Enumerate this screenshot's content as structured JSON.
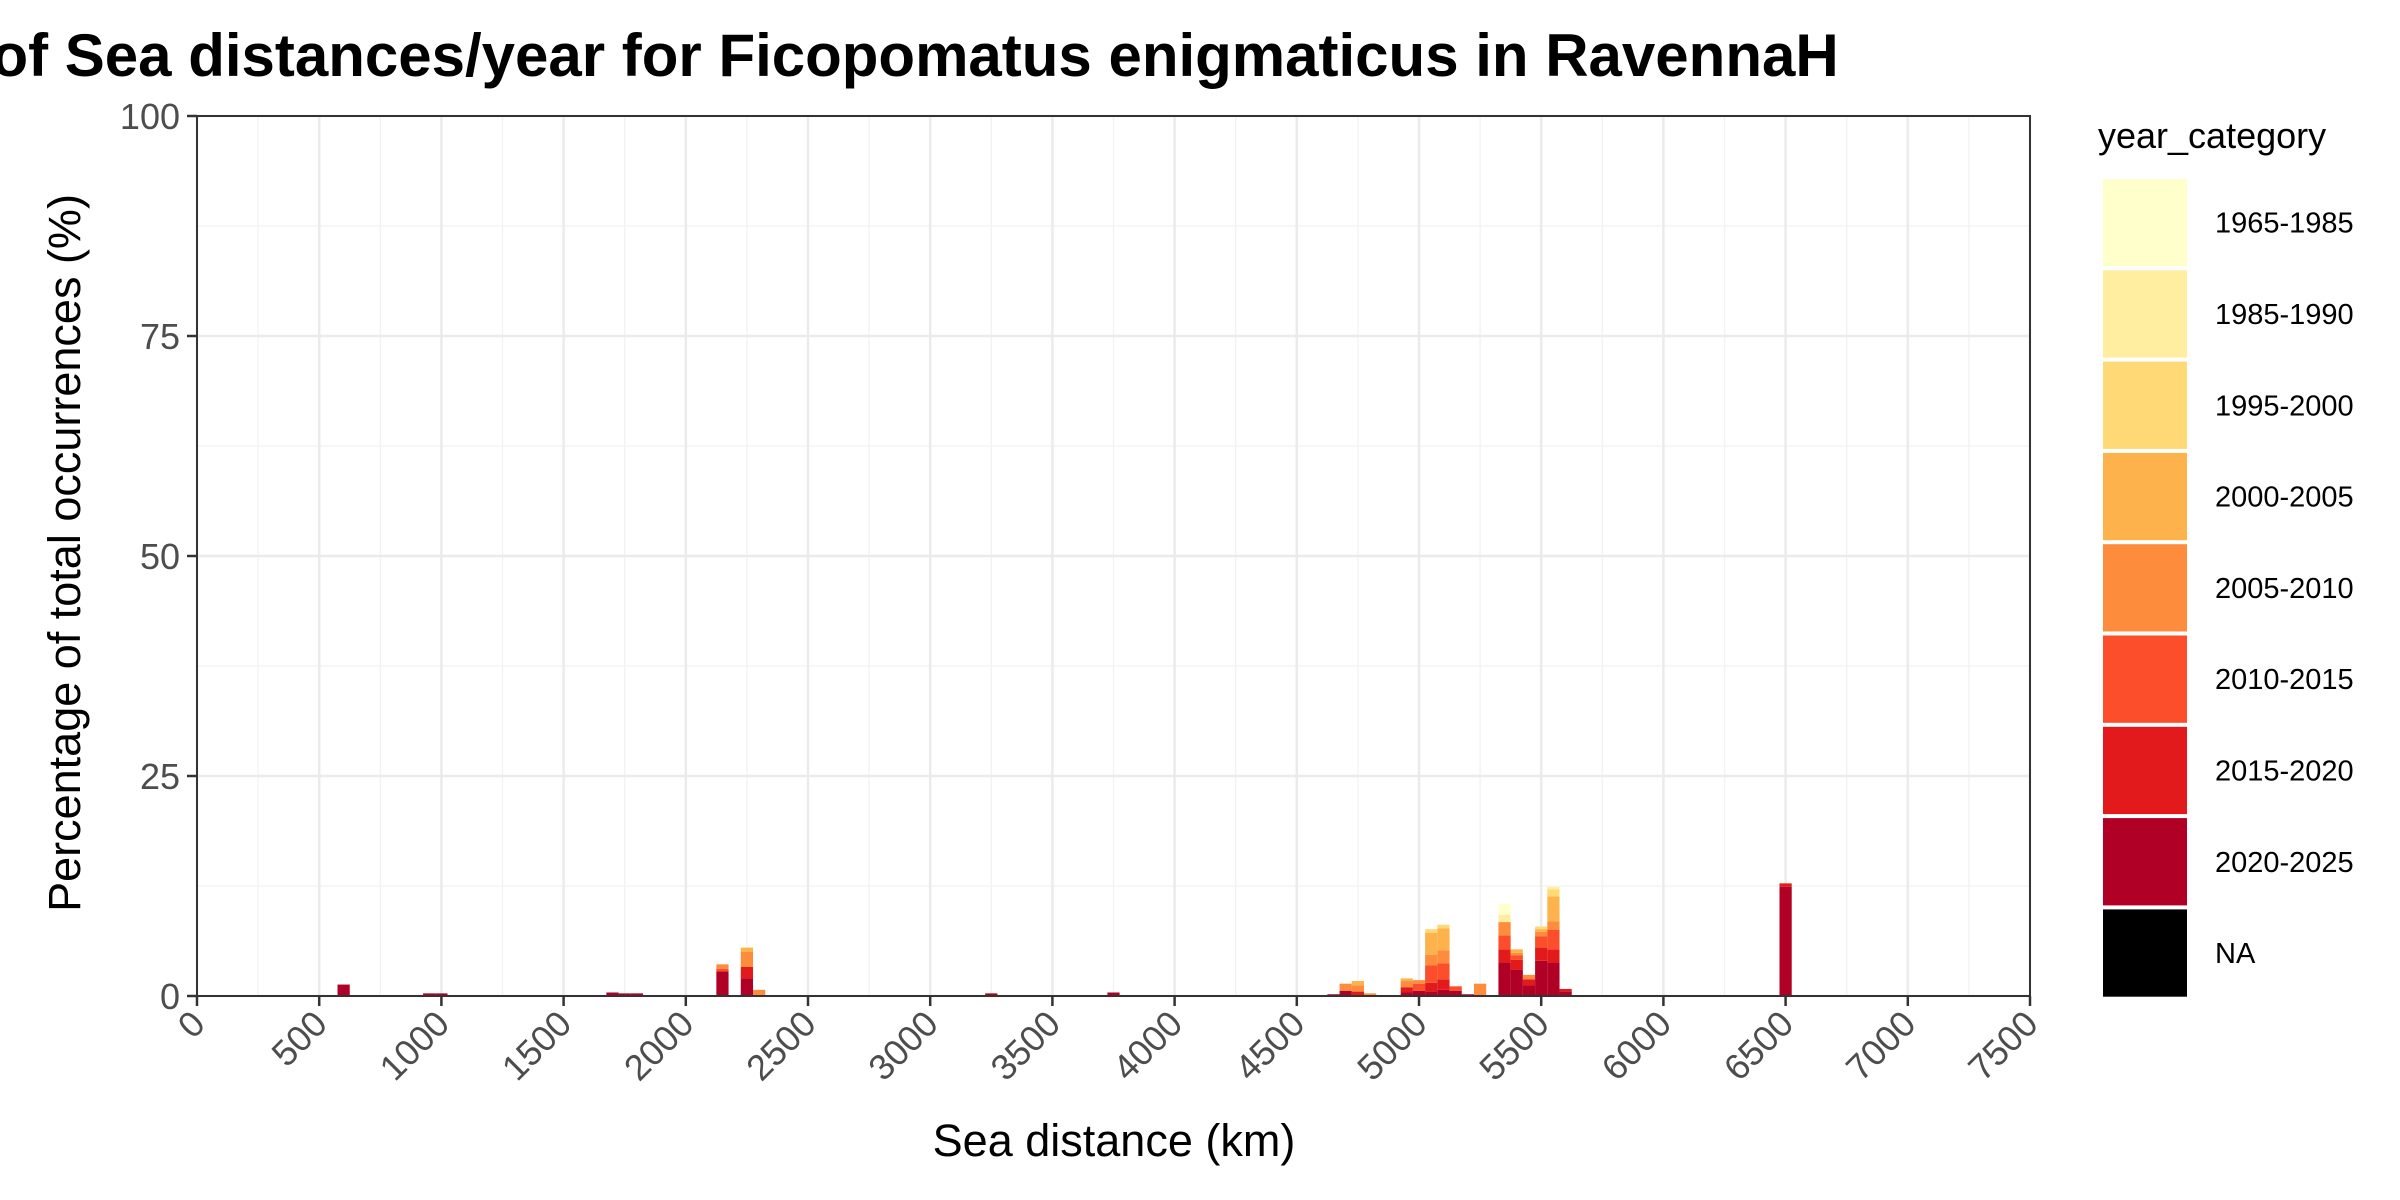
{
  "chart_data": {
    "type": "bar",
    "stacked": true,
    "title": "Frequencies of Sea distances/year for Ficopomatus enigmaticus in RavennaH",
    "xlabel": "Sea distance (km)",
    "ylabel": "Percentage of total occurrences (%)",
    "xlim": [
      0,
      7500
    ],
    "ylim": [
      0,
      100
    ],
    "x_ticks": [
      0,
      500,
      1000,
      1500,
      2000,
      2500,
      3000,
      3500,
      4000,
      4500,
      5000,
      5500,
      6000,
      6500,
      7000,
      7500
    ],
    "y_ticks": [
      0,
      25,
      50,
      75,
      100
    ],
    "bin_width": 50,
    "grid": true,
    "legend": {
      "title": "year_category",
      "position": "right",
      "entries": [
        {
          "label": "1965-1985",
          "color": "#FFFFCC"
        },
        {
          "label": "1985-1990",
          "color": "#FFEDA0"
        },
        {
          "label": "1995-2000",
          "color": "#FED976"
        },
        {
          "label": "2000-2005",
          "color": "#FEB24C"
        },
        {
          "label": "2005-2010",
          "color": "#FD8D3C"
        },
        {
          "label": "2010-2015",
          "color": "#FC4E2A"
        },
        {
          "label": "2015-2020",
          "color": "#E31A1C"
        },
        {
          "label": "2020-2025",
          "color": "#B10026"
        },
        {
          "label": "NA",
          "color": "#000000"
        }
      ]
    },
    "bins": [
      {
        "x": 600,
        "segments": {
          "2020-2025": 1.3
        }
      },
      {
        "x": 950,
        "segments": {
          "2020-2025": 0.3
        }
      },
      {
        "x": 1000,
        "segments": {
          "2020-2025": 0.3
        }
      },
      {
        "x": 1700,
        "segments": {
          "2020-2025": 0.4
        }
      },
      {
        "x": 1750,
        "segments": {
          "2020-2025": 0.3
        }
      },
      {
        "x": 1800,
        "segments": {
          "2020-2025": 0.3
        }
      },
      {
        "x": 2150,
        "segments": {
          "2020-2025": 2.8,
          "2010-2015": 0.3,
          "2005-2010": 0.5
        }
      },
      {
        "x": 2250,
        "segments": {
          "2020-2025": 2.0,
          "2015-2020": 1.3,
          "2005-2010": 1.7,
          "2000-2005": 0.5
        }
      },
      {
        "x": 2300,
        "segments": {
          "2005-2010": 0.7
        }
      },
      {
        "x": 3250,
        "segments": {
          "2020-2025": 0.3
        }
      },
      {
        "x": 3750,
        "segments": {
          "2020-2025": 0.4
        }
      },
      {
        "x": 4650,
        "segments": {
          "2020-2025": 0.2
        }
      },
      {
        "x": 4700,
        "segments": {
          "2020-2025": 0.6,
          "2005-2010": 0.8
        }
      },
      {
        "x": 4750,
        "segments": {
          "2015-2020": 0.5,
          "2005-2010": 0.7,
          "2000-2005": 0.5
        }
      },
      {
        "x": 4800,
        "segments": {
          "2005-2010": 0.3
        }
      },
      {
        "x": 4950,
        "segments": {
          "2020-2025": 0.4,
          "2015-2020": 0.6,
          "2005-2010": 0.7,
          "2000-2005": 0.3
        }
      },
      {
        "x": 5000,
        "segments": {
          "2020-2025": 0.6,
          "2010-2015": 0.8,
          "2005-2010": 0.4
        }
      },
      {
        "x": 5050,
        "segments": {
          "2020-2025": 0.5,
          "2015-2020": 1.0,
          "2010-2015": 2.0,
          "2005-2010": 1.2,
          "2000-2005": 2.5,
          "1995-2000": 0.4
        }
      },
      {
        "x": 5100,
        "segments": {
          "2020-2025": 0.7,
          "2015-2020": 1.2,
          "2010-2015": 1.8,
          "2005-2010": 1.5,
          "2000-2005": 2.5,
          "1995-2000": 0.4
        }
      },
      {
        "x": 5150,
        "segments": {
          "2020-2025": 0.6,
          "2010-2015": 0.5
        }
      },
      {
        "x": 5200,
        "segments": {
          "2020-2025": 0.2
        }
      },
      {
        "x": 5250,
        "segments": {
          "2005-2010": 1.4
        }
      },
      {
        "x": 5350,
        "segments": {
          "2020-2025": 3.8,
          "2015-2020": 1.5,
          "2010-2015": 1.6,
          "2005-2010": 1.5,
          "1985-1990": 0.8,
          "1965-1985": 1.3
        }
      },
      {
        "x": 5400,
        "segments": {
          "2020-2025": 3.0,
          "2015-2020": 1.1,
          "2010-2015": 0.5,
          "2005-2010": 0.3,
          "2000-2005": 0.4
        }
      },
      {
        "x": 5450,
        "segments": {
          "2020-2025": 1.2,
          "2015-2020": 0.7,
          "2005-2010": 0.5
        }
      },
      {
        "x": 5500,
        "segments": {
          "2020-2025": 4.0,
          "2015-2020": 1.5,
          "2010-2015": 1.3,
          "2005-2010": 0.5,
          "2000-2005": 0.3,
          "1995-2000": 0.3
        }
      },
      {
        "x": 5550,
        "segments": {
          "2020-2025": 3.8,
          "2015-2020": 1.5,
          "2010-2015": 2.2,
          "2005-2010": 1.0,
          "2000-2005": 2.8,
          "1995-2000": 0.8,
          "1985-1990": 0.3
        }
      },
      {
        "x": 5600,
        "segments": {
          "2020-2025": 0.5,
          "2015-2020": 0.3
        }
      },
      {
        "x": 6500,
        "segments": {
          "2020-2025": 12.4,
          "2015-2020": 0.4
        }
      }
    ]
  }
}
